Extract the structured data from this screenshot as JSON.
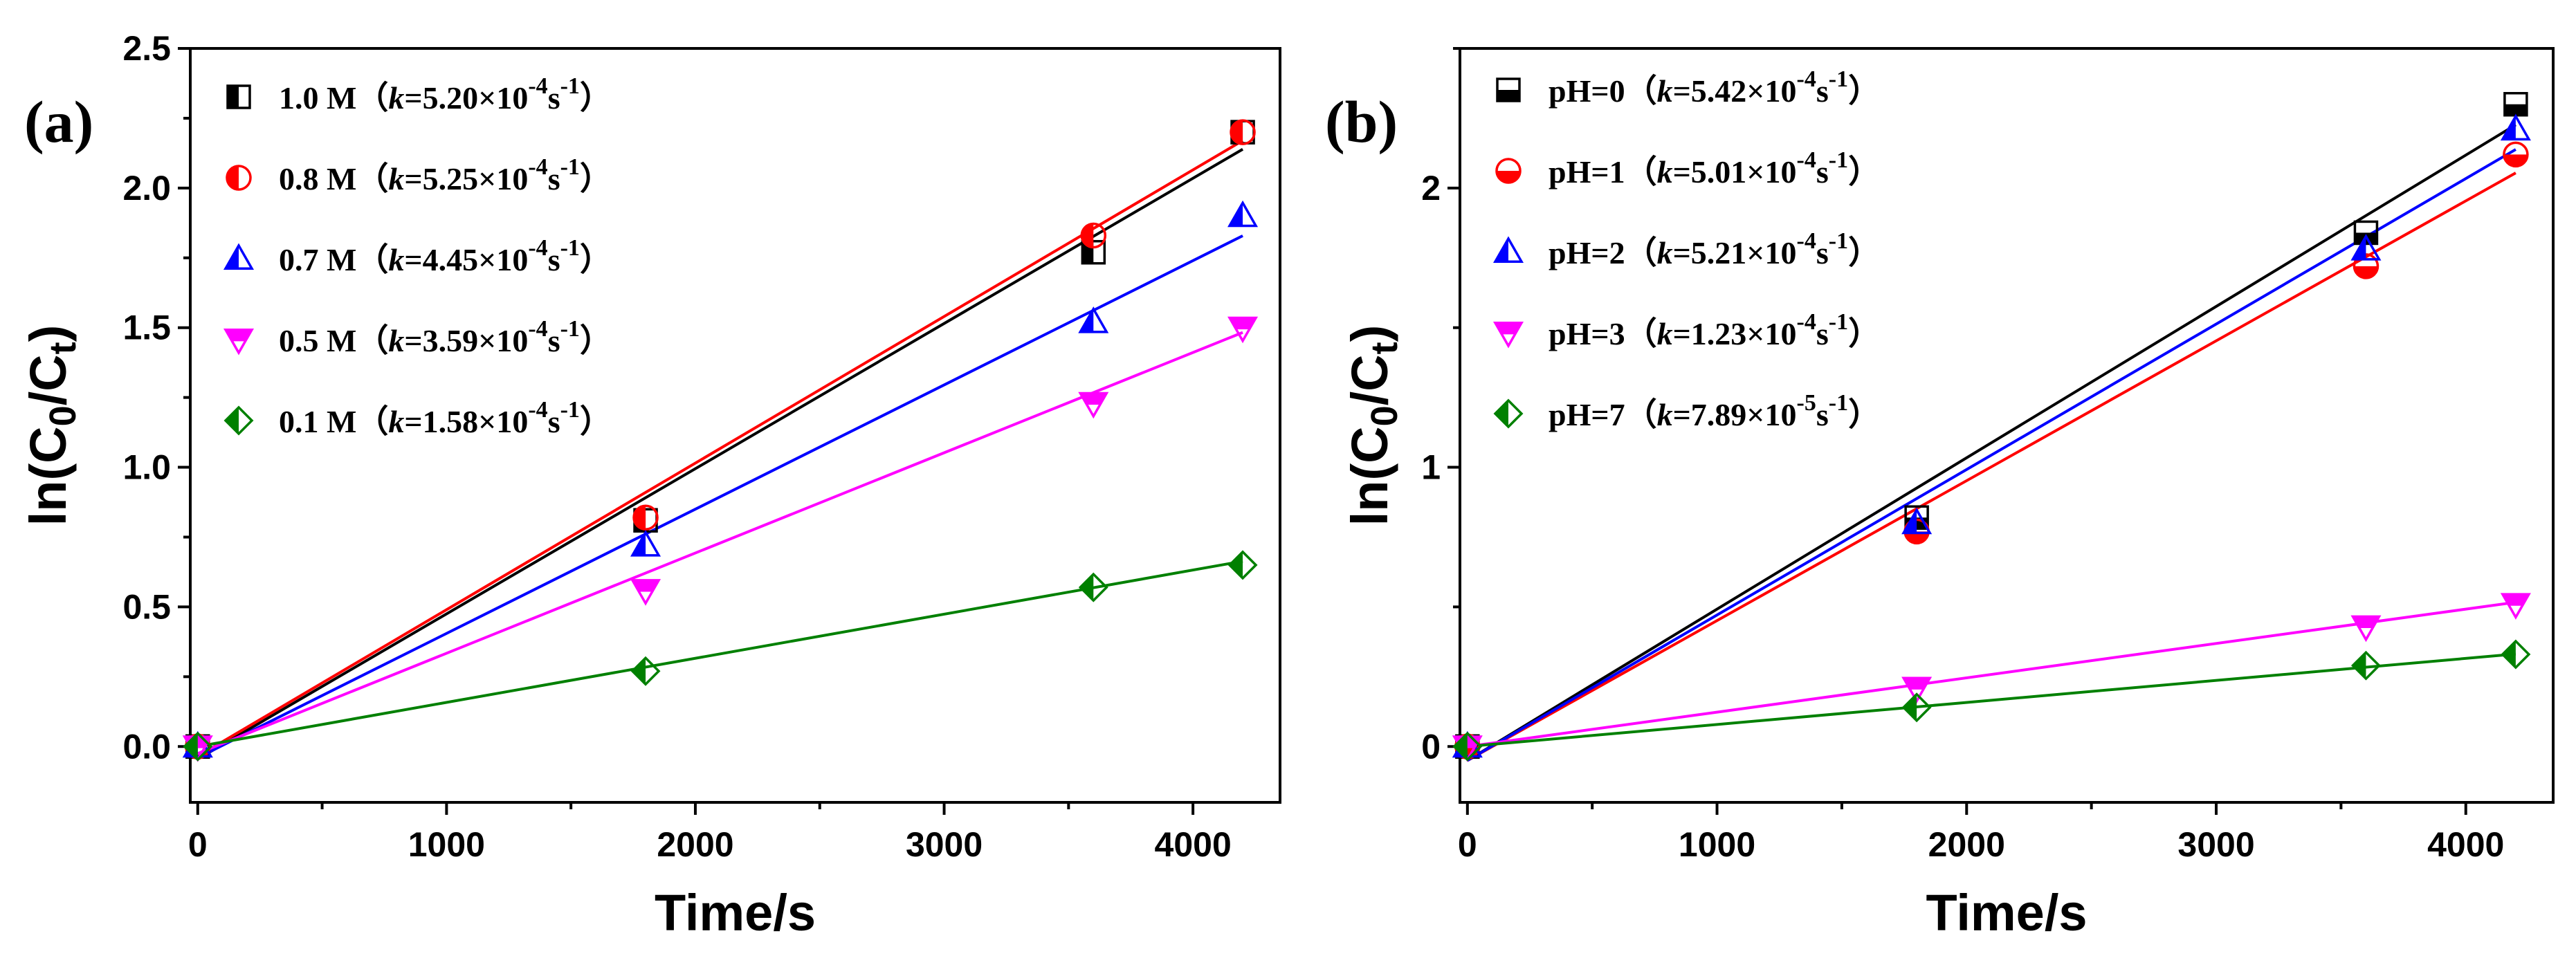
{
  "chart_data": [
    {
      "type": "scatter",
      "panel_label": "(a)",
      "xlabel": "Time/s",
      "ylabel": {
        "prefix": "ln(C",
        "sub1": "0",
        "mid": "/C",
        "sub2": "t",
        "suffix": ")"
      },
      "xlim": [
        -30,
        4350
      ],
      "ylim": [
        -0.2,
        2.5
      ],
      "xticks": [
        0,
        1000,
        2000,
        3000,
        4000
      ],
      "xtick_labels": [
        "0",
        "1000",
        "2000",
        "3000",
        "4000"
      ],
      "yticks": [
        0.0,
        0.5,
        1.0,
        1.5,
        2.0,
        2.5
      ],
      "ytick_labels": [
        "0.0",
        "0.5",
        "1.0",
        "1.5",
        "2.0",
        "2.5"
      ],
      "series": [
        {
          "name": "1.0 M",
          "k_coef": "5.20",
          "k_exp": "-4",
          "color": "#000000",
          "marker": "square-half-left",
          "x": [
            0,
            1800,
            3600,
            4200
          ],
          "values": [
            0.0,
            0.81,
            1.77,
            2.2
          ],
          "fit": [
            -0.045,
            0.00052
          ]
        },
        {
          "name": "0.8 M",
          "k_coef": "5.25",
          "k_exp": "-4",
          "color": "#ff0000",
          "marker": "circle-half-left",
          "x": [
            0,
            1800,
            3600,
            4200
          ],
          "values": [
            0.0,
            0.82,
            1.83,
            2.2
          ],
          "fit": [
            -0.035,
            0.000525
          ]
        },
        {
          "name": "0.7 M",
          "k_coef": "4.45",
          "k_exp": "-4",
          "color": "#0000ff",
          "marker": "triangle-up-half",
          "x": [
            0,
            1800,
            3600,
            4200
          ],
          "values": [
            0.0,
            0.72,
            1.52,
            1.9
          ],
          "fit": [
            -0.04,
            0.000445
          ]
        },
        {
          "name": "0.5 M",
          "k_coef": "3.59",
          "k_exp": "-4",
          "color": "#ff00ff",
          "marker": "triangle-down-half",
          "x": [
            0,
            1800,
            3600,
            4200
          ],
          "values": [
            0.0,
            0.56,
            1.23,
            1.5
          ],
          "fit": [
            -0.025,
            0.000359
          ]
        },
        {
          "name": "0.1 M",
          "k_coef": "1.58",
          "k_exp": "-4",
          "color": "#008000",
          "marker": "diamond-half",
          "x": [
            0,
            1800,
            3600,
            4200
          ],
          "values": [
            0.0,
            0.27,
            0.57,
            0.65
          ],
          "fit": [
            0.0,
            0.000158
          ]
        }
      ]
    },
    {
      "type": "scatter",
      "panel_label": "(b)",
      "xlabel": "Time/s",
      "ylabel": {
        "prefix": "ln(C",
        "sub1": "0",
        "mid": "/C",
        "sub2": "t",
        "suffix": ")"
      },
      "xlim": [
        -30,
        4350
      ],
      "ylim": [
        -0.2,
        2.5
      ],
      "xticks": [
        0,
        1000,
        2000,
        3000,
        4000
      ],
      "xtick_labels": [
        "0",
        "1000",
        "2000",
        "3000",
        "4000"
      ],
      "yticks": [
        0,
        1,
        2
      ],
      "ytick_labels": [
        "0",
        "1",
        "2"
      ],
      "series": [
        {
          "name": "pH=0",
          "k_coef": "5.42",
          "k_exp": "-4",
          "color": "#000000",
          "marker": "square-half-bottom",
          "x": [
            0,
            1800,
            3600,
            4200
          ],
          "values": [
            0.0,
            0.82,
            1.84,
            2.3
          ],
          "fit": [
            -0.05,
            0.000542
          ]
        },
        {
          "name": "pH=1",
          "k_coef": "5.01",
          "k_exp": "-4",
          "color": "#ff0000",
          "marker": "circle-half-bottom",
          "x": [
            0,
            1800,
            3600,
            4200
          ],
          "values": [
            0.0,
            0.77,
            1.72,
            2.12
          ],
          "fit": [
            -0.05,
            0.000501
          ]
        },
        {
          "name": "pH=2",
          "k_coef": "5.21",
          "k_exp": "-4",
          "color": "#0000ff",
          "marker": "triangle-up-half",
          "x": [
            0,
            1800,
            3600,
            4200
          ],
          "values": [
            0.0,
            0.8,
            1.78,
            2.21
          ],
          "fit": [
            -0.05,
            0.000521
          ]
        },
        {
          "name": "pH=3",
          "k_coef": "1.23",
          "k_exp": "-4",
          "color": "#ff00ff",
          "marker": "triangle-down-half",
          "x": [
            0,
            1800,
            3600,
            4200
          ],
          "values": [
            0.0,
            0.21,
            0.43,
            0.51
          ],
          "fit": [
            0.0,
            0.000123
          ]
        },
        {
          "name": "pH=7",
          "k_coef": "7.89",
          "k_exp": "-5",
          "color": "#008000",
          "marker": "diamond-half",
          "x": [
            0,
            1800,
            3600,
            4200
          ],
          "values": [
            0.0,
            0.14,
            0.29,
            0.33
          ],
          "fit": [
            0.0,
            7.89e-05
          ]
        }
      ]
    }
  ]
}
